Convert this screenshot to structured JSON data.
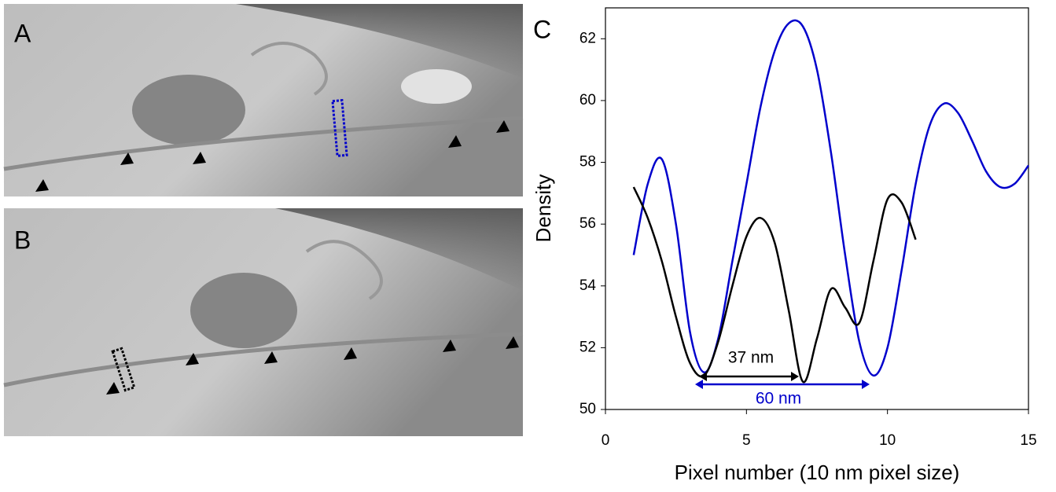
{
  "panels": {
    "a": "A",
    "b": "B"
  },
  "chart_data": {
    "type": "line",
    "panel_label": "C",
    "x_label": "Pixel number (10 nm pixel size)",
    "y_label": "Density",
    "xlim": [
      0,
      15
    ],
    "xticks": [
      0,
      5,
      10,
      15
    ],
    "ylim": [
      50,
      63
    ],
    "yticks": [
      50,
      52,
      54,
      56,
      58,
      60,
      62
    ],
    "annotations": [
      "37 nm",
      "60 nm"
    ],
    "series": [
      {
        "color": "#0000cc",
        "x": [
          1,
          1.5,
          2,
          2.5,
          3,
          3.5,
          4,
          4.5,
          5,
          5.5,
          6,
          6.5,
          7,
          7.5,
          8,
          8.5,
          9,
          9.5,
          10,
          10.5,
          11,
          11.5,
          12,
          12.5,
          13,
          13.5,
          14,
          14.5,
          15
        ],
        "values": [
          55.0,
          57.3,
          58.1,
          56.0,
          52.5,
          51.2,
          52.3,
          54.8,
          57.3,
          59.8,
          61.6,
          62.5,
          62.4,
          61.0,
          58.3,
          55.0,
          52.2,
          51.1,
          52.0,
          54.5,
          57.3,
          59.2,
          59.9,
          59.6,
          58.7,
          57.7,
          57.2,
          57.3,
          57.9
        ]
      },
      {
        "color": "#000000",
        "x": [
          1,
          1.5,
          2,
          2.5,
          3,
          3.5,
          4,
          4.5,
          5,
          5.5,
          6,
          6.5,
          7,
          7.5,
          8,
          8.5,
          9,
          9.5,
          10,
          10.5,
          11
        ],
        "values": [
          57.2,
          56.2,
          54.8,
          53.0,
          51.5,
          51.1,
          52.2,
          54.0,
          55.6,
          56.2,
          55.4,
          53.2,
          50.9,
          52.3,
          53.9,
          53.3,
          52.8,
          54.8,
          56.8,
          56.7,
          55.5
        ]
      }
    ]
  }
}
